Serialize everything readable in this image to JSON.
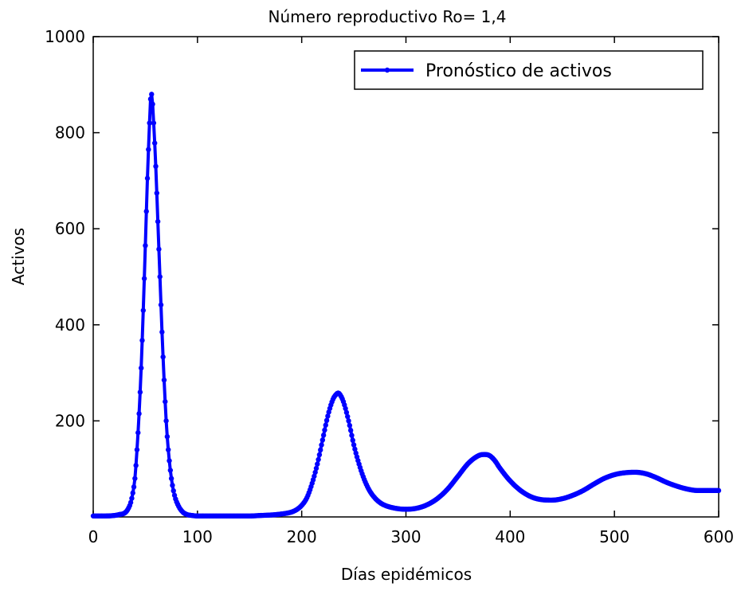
{
  "chart_data": {
    "type": "line",
    "title": "Número reproductivo Ro= 1,4",
    "xlabel": "Días epidémicos",
    "ylabel": "Activos",
    "xlim": [
      0,
      600
    ],
    "ylim": [
      0,
      1000
    ],
    "xticks": [
      "0",
      "100",
      "200",
      "300",
      "400",
      "500",
      "600"
    ],
    "yticks": [
      "200",
      "400",
      "600",
      "800",
      "1000"
    ],
    "grid": false,
    "legend_position": "top-right",
    "series": [
      {
        "name": "Pronóstico de activos",
        "color": "#0000ff",
        "x": [
          0,
          10,
          20,
          25,
          30,
          33,
          36,
          38,
          40,
          42,
          44,
          46,
          48,
          50,
          52,
          54,
          55,
          56,
          58,
          60,
          62,
          64,
          66,
          68,
          70,
          72,
          75,
          78,
          82,
          86,
          90,
          95,
          100,
          110,
          120,
          130,
          140,
          150,
          160,
          170,
          180,
          190,
          195,
          200,
          205,
          210,
          215,
          220,
          225,
          230,
          233,
          235,
          237,
          240,
          245,
          250,
          255,
          260,
          265,
          270,
          275,
          280,
          290,
          300,
          310,
          320,
          330,
          340,
          350,
          360,
          370,
          375,
          380,
          385,
          390,
          400,
          410,
          420,
          430,
          440,
          450,
          460,
          470,
          480,
          490,
          500,
          510,
          520,
          530,
          540,
          550,
          560,
          570,
          580,
          590,
          600
        ],
        "y": [
          2,
          2,
          3,
          5,
          8,
          15,
          30,
          50,
          80,
          140,
          215,
          310,
          430,
          565,
          705,
          820,
          870,
          880,
          820,
          730,
          615,
          500,
          385,
          285,
          200,
          140,
          80,
          45,
          22,
          10,
          5,
          3,
          2,
          2,
          2,
          2,
          2,
          2,
          3,
          4,
          6,
          10,
          15,
          24,
          40,
          70,
          110,
          160,
          210,
          245,
          255,
          258,
          254,
          240,
          200,
          150,
          110,
          78,
          55,
          40,
          30,
          24,
          18,
          16,
          18,
          25,
          38,
          58,
          85,
          112,
          128,
          130,
          128,
          118,
          102,
          75,
          55,
          42,
          36,
          35,
          38,
          45,
          55,
          68,
          80,
          88,
          92,
          93,
          90,
          82,
          72,
          64,
          58,
          55,
          55,
          55
        ]
      }
    ]
  }
}
